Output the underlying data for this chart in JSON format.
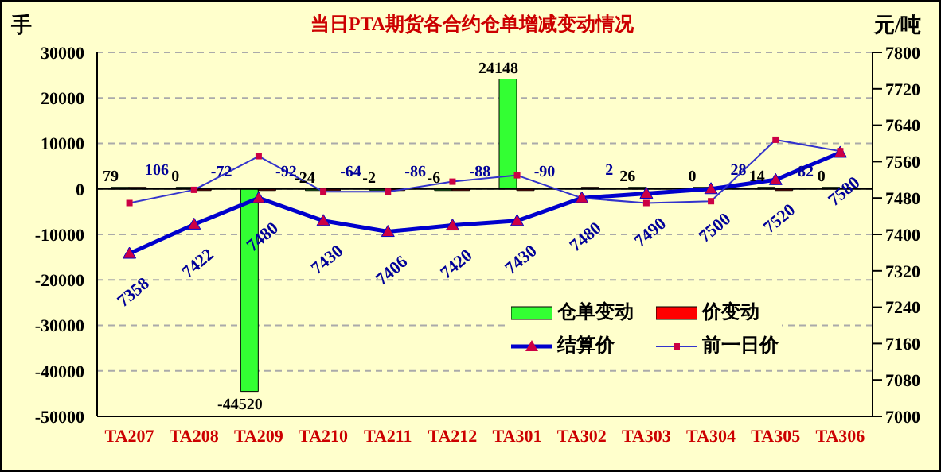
{
  "chart_data": {
    "type": "bar",
    "title": "当日PTA期货各合约仓单增减变动情况",
    "ylabel": "手",
    "y2label": "元/吨",
    "categories": [
      "TA207",
      "TA208",
      "TA209",
      "TA210",
      "TA211",
      "TA212",
      "TA301",
      "TA302",
      "TA303",
      "TA304",
      "TA305",
      "TA306"
    ],
    "series": [
      {
        "name": "仓单变动",
        "color": "#33ff33",
        "values": [
          79,
          0,
          -44520,
          -24,
          -2,
          -6,
          24148,
          null,
          26,
          0,
          14,
          0
        ],
        "value_labels": [
          "79",
          "0",
          "-44520",
          "-24",
          "-2",
          "-6",
          "24148",
          null,
          "26",
          "0",
          "14",
          "0"
        ]
      },
      {
        "name": "价变动",
        "color": "#ff0000",
        "values": [
          106,
          -72,
          -92,
          -64,
          -86,
          -88,
          -90,
          2,
          null,
          28,
          -82,
          null
        ],
        "value_labels": [
          "106",
          "-72",
          "-92",
          "-64",
          "-86",
          "-88",
          "-90",
          "2",
          null,
          "28",
          "-82",
          null
        ]
      },
      {
        "name": "结算价",
        "type": "line",
        "axis": "y2",
        "color": "#0000cc",
        "marker": "triangle",
        "values": [
          7358,
          7422,
          7480,
          7430,
          7406,
          7420,
          7430,
          7480,
          7490,
          7500,
          7520,
          7580
        ],
        "value_labels": [
          "7358",
          "7422",
          "7480",
          "7430",
          "7406",
          "7420",
          "7430",
          "7480",
          "7490",
          "7500",
          "7520",
          "7580"
        ]
      },
      {
        "name": "前一日价",
        "type": "line",
        "axis": "y2",
        "color": "#3333cc",
        "marker": "square",
        "values": [
          7469,
          7498,
          7572,
          7494,
          7494,
          7516,
          7530,
          7480,
          7469,
          7473,
          7608,
          7583
        ]
      }
    ],
    "ylim": [
      -50000,
      30000
    ],
    "yticks": [
      -50000,
      -40000,
      -30000,
      -20000,
      -10000,
      0,
      10000,
      20000,
      30000
    ],
    "y2lim": [
      7000,
      7800
    ],
    "y2ticks": [
      7000,
      7080,
      7160,
      7240,
      7320,
      7400,
      7480,
      7560,
      7640,
      7720,
      7800
    ],
    "grid": "y",
    "legend": "bottom"
  }
}
